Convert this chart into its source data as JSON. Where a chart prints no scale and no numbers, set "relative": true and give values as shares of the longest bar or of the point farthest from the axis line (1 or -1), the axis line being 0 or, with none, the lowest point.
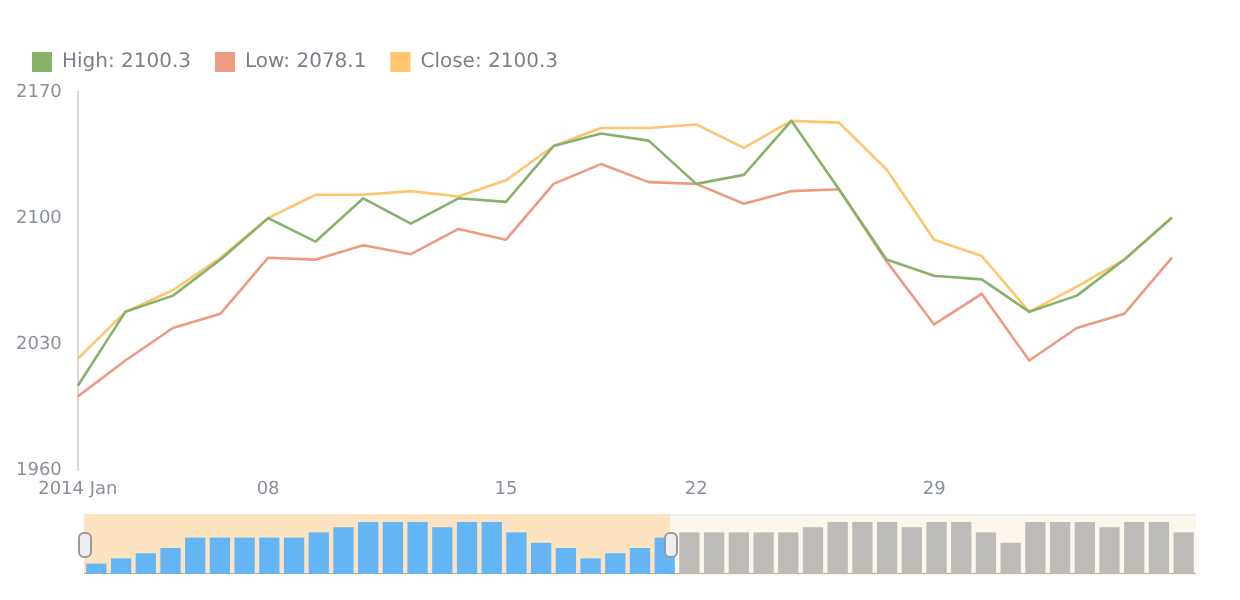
{
  "chart_data": [
    {
      "type": "line",
      "categories": [
        "2014 Jan",
        null,
        null,
        null,
        "08",
        null,
        null,
        null,
        null,
        "15",
        null,
        null,
        null,
        "22",
        null,
        null,
        null,
        null,
        "29",
        null,
        null,
        null,
        null,
        null
      ],
      "series": [
        {
          "name": "High: 2100.3",
          "color": "#86b26a",
          "values": [
            2007,
            2048,
            2057,
            2077,
            2100,
            2087,
            2111,
            2097,
            2111,
            2109,
            2140,
            2147,
            2143,
            2119,
            2124,
            2154,
            2116,
            2077,
            2068,
            2066,
            2048,
            2057,
            2077,
            2100.3
          ]
        },
        {
          "name": "Low: 2078.1",
          "color": "#ee9a80",
          "values": [
            2001,
            2021,
            2039,
            2047,
            2078,
            2077,
            2085,
            2080,
            2094,
            2088,
            2119,
            2130,
            2120,
            2119,
            2108,
            2115,
            2116,
            2076,
            2041,
            2058,
            2021,
            2039,
            2047,
            2078.1
          ]
        },
        {
          "name": "Close: 2100.3",
          "color": "#ffc46e",
          "values": [
            2022,
            2048,
            2060,
            2078,
            2100,
            2113,
            2113,
            2115,
            2112,
            2121,
            2140,
            2150,
            2150,
            2152,
            2139,
            2154,
            2153,
            2127,
            2088,
            2079,
            2048,
            2062,
            2077,
            2100.3
          ]
        }
      ],
      "ylim": [
        1960,
        2170
      ],
      "yticks": [
        1960,
        2030,
        2100,
        2170
      ],
      "grid": false,
      "legend": "top left",
      "marker": "none"
    },
    {
      "type": "bar",
      "relative": true,
      "categories": [
        null,
        null,
        null,
        null,
        null,
        null,
        null,
        null,
        null,
        null,
        null,
        null,
        null,
        null,
        null,
        null,
        null,
        null,
        null,
        null,
        null,
        null,
        null,
        null,
        null,
        null,
        null,
        null,
        null,
        null,
        null,
        null,
        null,
        null,
        null,
        null,
        null,
        null,
        null,
        null,
        null,
        null,
        null,
        null,
        null
      ],
      "values": [
        0.2,
        0.3,
        0.4,
        0.5,
        0.7,
        0.7,
        0.7,
        0.7,
        0.7,
        0.8,
        0.9,
        1,
        1,
        1,
        0.9,
        1,
        1,
        0.8,
        0.6,
        0.5,
        0.3,
        0.4,
        0.5,
        0.7,
        0.8,
        0.8,
        0.8,
        0.8,
        0.8,
        0.9,
        1,
        1,
        1,
        0.9,
        1,
        1,
        0.8,
        0.6,
        1,
        1,
        1,
        0.9,
        1,
        1,
        0.8
      ],
      "colors": [
        "#64b5f6",
        "#64b5f6",
        "#64b5f6",
        "#64b5f6",
        "#64b5f6",
        "#64b5f6",
        "#64b5f6",
        "#64b5f6",
        "#64b5f6",
        "#64b5f6",
        "#64b5f6",
        "#64b5f6",
        "#64b5f6",
        "#64b5f6",
        "#64b5f6",
        "#64b5f6",
        "#64b5f6",
        "#64b5f6",
        "#64b5f6",
        "#64b5f6",
        "#64b5f6",
        "#64b5f6",
        "#64b5f6",
        "#64b5f6",
        "#bdbbb7",
        "#bdbbb7",
        "#bdbbb7",
        "#bdbbb7",
        "#bdbbb7",
        "#bdbbb7",
        "#bdbbb7",
        "#bdbbb7",
        "#bdbbb7",
        "#bdbbb7",
        "#bdbbb7",
        "#bdbbb7",
        "#bdbbb7",
        "#bdbbb7",
        "#bdbbb7",
        "#bdbbb7",
        "#bdbbb7",
        "#bdbbb7",
        "#bdbbb7",
        "#bdbbb7",
        "#bdbbb7"
      ]
    }
  ]
}
